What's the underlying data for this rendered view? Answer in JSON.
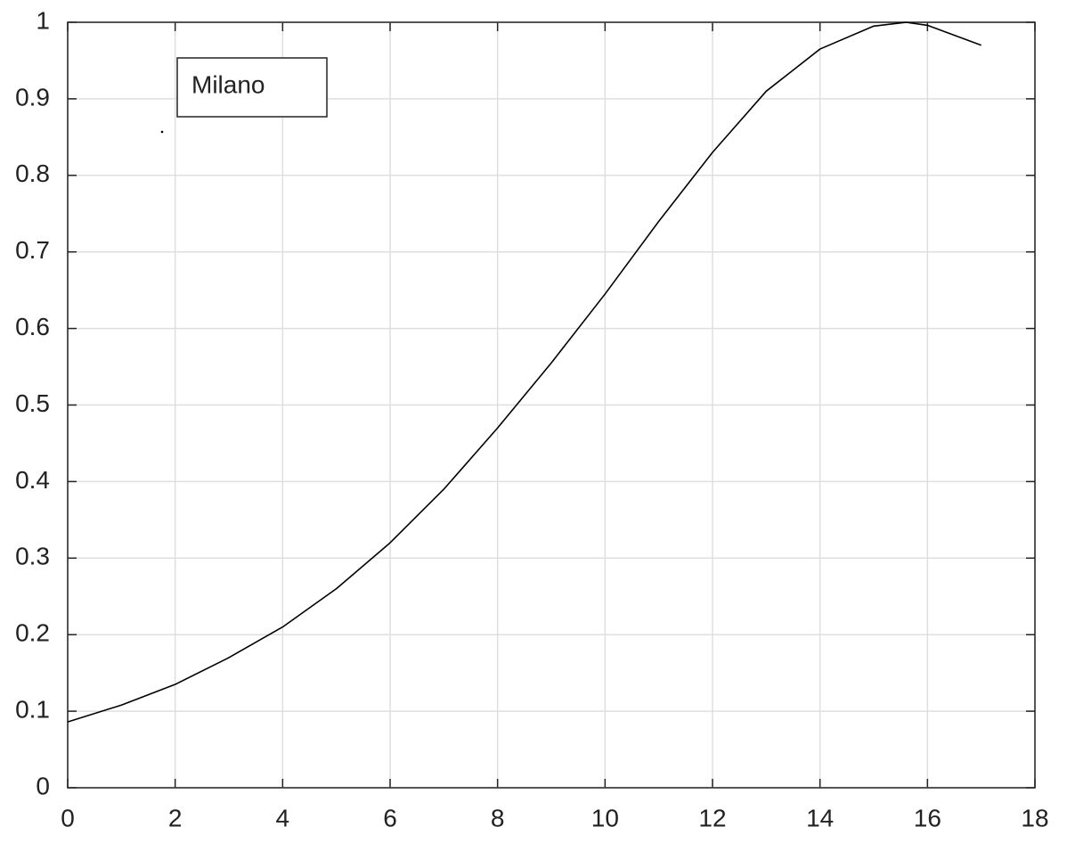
{
  "chart_data": {
    "type": "line",
    "x": [
      0,
      1,
      2,
      3,
      4,
      5,
      6,
      7,
      8,
      9,
      10,
      11,
      12,
      13,
      14,
      15,
      15.6,
      16,
      17
    ],
    "series": [
      {
        "name": "Milano",
        "color": "#000000",
        "values": [
          0.086,
          0.108,
          0.135,
          0.17,
          0.21,
          0.26,
          0.32,
          0.39,
          0.47,
          0.555,
          0.645,
          0.74,
          0.83,
          0.91,
          0.965,
          0.995,
          1.0,
          0.996,
          0.97
        ]
      }
    ],
    "xlim": [
      0,
      18
    ],
    "ylim": [
      0,
      1
    ],
    "xticks": [
      0,
      2,
      4,
      6,
      8,
      10,
      12,
      14,
      16,
      18
    ],
    "yticks": [
      0,
      0.1,
      0.2,
      0.3,
      0.4,
      0.5,
      0.6,
      0.7,
      0.8,
      0.9,
      1
    ],
    "grid": true,
    "legend": "upper left"
  }
}
